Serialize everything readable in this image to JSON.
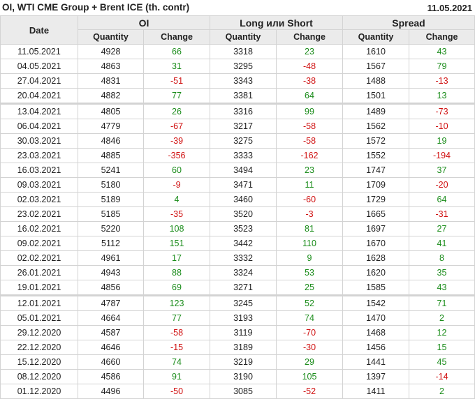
{
  "header": {
    "title": "OI, WTI CME Group + Brent ICE (th. contr)",
    "date": "11.05.2021"
  },
  "colors": {
    "positive": "#1a8c1a",
    "negative": "#d01010",
    "header_bg": "#ebebeb"
  },
  "table": {
    "date_header": "Date",
    "groups": [
      "OI",
      "Long или Short",
      "Spread"
    ],
    "sub_headers": [
      "Quantity",
      "Change",
      "Quantity",
      "Change",
      "Quantity",
      "Change"
    ],
    "rows": [
      [
        "11.05.2021",
        "4928",
        "66",
        "3318",
        "23",
        "1610",
        "43"
      ],
      [
        "04.05.2021",
        "4863",
        "31",
        "3295",
        "-48",
        "1567",
        "79"
      ],
      [
        "27.04.2021",
        "4831",
        "-51",
        "3343",
        "-38",
        "1488",
        "-13"
      ],
      [
        "20.04.2021",
        "4882",
        "77",
        "3381",
        "64",
        "1501",
        "13"
      ],
      [
        "13.04.2021",
        "4805",
        "26",
        "3316",
        "99",
        "1489",
        "-73"
      ],
      [
        "06.04.2021",
        "4779",
        "-67",
        "3217",
        "-58",
        "1562",
        "-10"
      ],
      [
        "30.03.2021",
        "4846",
        "-39",
        "3275",
        "-58",
        "1572",
        "19"
      ],
      [
        "23.03.2021",
        "4885",
        "-356",
        "3333",
        "-162",
        "1552",
        "-194"
      ],
      [
        "16.03.2021",
        "5241",
        "60",
        "3494",
        "23",
        "1747",
        "37"
      ],
      [
        "09.03.2021",
        "5180",
        "-9",
        "3471",
        "11",
        "1709",
        "-20"
      ],
      [
        "02.03.2021",
        "5189",
        "4",
        "3460",
        "-60",
        "1729",
        "64"
      ],
      [
        "23.02.2021",
        "5185",
        "-35",
        "3520",
        "-3",
        "1665",
        "-31"
      ],
      [
        "16.02.2021",
        "5220",
        "108",
        "3523",
        "81",
        "1697",
        "27"
      ],
      [
        "09.02.2021",
        "5112",
        "151",
        "3442",
        "110",
        "1670",
        "41"
      ],
      [
        "02.02.2021",
        "4961",
        "17",
        "3332",
        "9",
        "1628",
        "8"
      ],
      [
        "26.01.2021",
        "4943",
        "88",
        "3324",
        "53",
        "1620",
        "35"
      ],
      [
        "19.01.2021",
        "4856",
        "69",
        "3271",
        "25",
        "1585",
        "43"
      ],
      [
        "12.01.2021",
        "4787",
        "123",
        "3245",
        "52",
        "1542",
        "71"
      ],
      [
        "05.01.2021",
        "4664",
        "77",
        "3193",
        "74",
        "1470",
        "2"
      ],
      [
        "29.12.2020",
        "4587",
        "-58",
        "3119",
        "-70",
        "1468",
        "12"
      ],
      [
        "22.12.2020",
        "4646",
        "-15",
        "3189",
        "-30",
        "1456",
        "15"
      ],
      [
        "15.12.2020",
        "4660",
        "74",
        "3219",
        "29",
        "1441",
        "45"
      ],
      [
        "08.12.2020",
        "4586",
        "91",
        "3190",
        "105",
        "1397",
        "-14"
      ],
      [
        "01.12.2020",
        "4496",
        "-50",
        "3085",
        "-52",
        "1411",
        "2"
      ]
    ]
  }
}
